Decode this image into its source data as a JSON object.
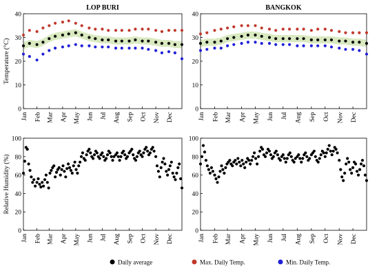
{
  "chart_data": [
    {
      "type": "scatter",
      "title": "LOP BURI",
      "ylabel": "Temperature (°C)",
      "xlabel": "",
      "ylim": [
        0,
        40
      ],
      "yticks": [
        "0",
        "10",
        "20",
        "30",
        "40"
      ],
      "xticks": [
        "Jan",
        "Feb",
        "Mar",
        "Apr",
        "May",
        "Jun",
        "Jul",
        "Aug",
        "Sep",
        "Oct",
        "Nov",
        "Dec"
      ],
      "grid": false,
      "series": [
        {
          "name": "Daily average",
          "color": "#000000",
          "x": [
            1,
            15,
            32,
            46,
            60,
            74,
            91,
            105,
            121,
            135,
            152,
            166,
            182,
            196,
            213,
            227,
            244,
            258,
            274,
            288,
            305,
            319,
            335,
            349,
            365
          ],
          "y": [
            26.5,
            27.5,
            27,
            28,
            29.5,
            30.5,
            31,
            31.5,
            32,
            31,
            30,
            29.5,
            29,
            29,
            28.5,
            28.5,
            28.5,
            29,
            28.5,
            28.5,
            28,
            27.5,
            27.5,
            27,
            27
          ]
        },
        {
          "name": "Max. Daily Temp.",
          "color": "#c0392b",
          "x": [
            1,
            15,
            32,
            46,
            60,
            74,
            91,
            105,
            121,
            135,
            152,
            166,
            182,
            196,
            213,
            227,
            244,
            258,
            274,
            288,
            305,
            319,
            335,
            349,
            365
          ],
          "y": [
            31,
            33,
            32.5,
            34,
            35,
            36,
            36.5,
            37,
            36,
            35,
            34,
            33.5,
            33.5,
            33,
            33,
            33,
            33,
            33.5,
            33.5,
            33.5,
            33,
            32.5,
            33,
            33,
            33
          ]
        },
        {
          "name": "Min. Daily Temp.",
          "color": "#1f1fd6",
          "x": [
            1,
            15,
            32,
            46,
            60,
            74,
            91,
            105,
            121,
            135,
            152,
            166,
            182,
            196,
            213,
            227,
            244,
            258,
            274,
            288,
            305,
            319,
            335,
            349,
            365
          ],
          "y": [
            23,
            22,
            20.5,
            23,
            24.5,
            25.5,
            26,
            26.5,
            27,
            26.5,
            26.5,
            26,
            26,
            26,
            25.5,
            25.5,
            25.5,
            25.5,
            25.5,
            25,
            24.5,
            23.5,
            24,
            23.5,
            21
          ]
        }
      ]
    },
    {
      "type": "scatter",
      "title": "BANGKOK",
      "ylabel": "",
      "xlabel": "",
      "ylim": [
        0,
        40
      ],
      "yticks": [
        "0",
        "10",
        "20",
        "30",
        "40"
      ],
      "xticks": [
        "Jan",
        "Feb",
        "Mar",
        "Apr",
        "May",
        "Jun",
        "Jul",
        "Aug",
        "Sep",
        "Oct",
        "Nov",
        "Dec"
      ],
      "grid": false,
      "series": [
        {
          "name": "Daily average",
          "color": "#000000",
          "x": [
            1,
            15,
            32,
            46,
            60,
            74,
            91,
            105,
            121,
            135,
            152,
            166,
            182,
            196,
            213,
            227,
            244,
            258,
            274,
            288,
            305,
            319,
            335,
            349,
            365
          ],
          "y": [
            27.5,
            28,
            28,
            28.5,
            29.5,
            30,
            30.5,
            31,
            31,
            30.5,
            30,
            29.5,
            29.5,
            29.5,
            29.5,
            29.5,
            29,
            29,
            29,
            29,
            28.5,
            28.5,
            28,
            28,
            27.5
          ]
        },
        {
          "name": "Max. Daily Temp.",
          "color": "#c0392b",
          "x": [
            1,
            15,
            32,
            46,
            60,
            74,
            91,
            105,
            121,
            135,
            152,
            166,
            182,
            196,
            213,
            227,
            244,
            258,
            274,
            288,
            305,
            319,
            335,
            349,
            365
          ],
          "y": [
            31.5,
            32,
            33,
            33.5,
            34,
            34.5,
            35,
            35,
            35,
            34,
            33.5,
            33,
            33.5,
            33.5,
            33.5,
            33.5,
            33,
            33.5,
            33.5,
            33,
            32.5,
            32,
            32,
            32,
            32
          ]
        },
        {
          "name": "Min. Daily Temp.",
          "color": "#1f1fd6",
          "x": [
            1,
            15,
            32,
            46,
            60,
            74,
            91,
            105,
            121,
            135,
            152,
            166,
            182,
            196,
            213,
            227,
            244,
            258,
            274,
            288,
            305,
            319,
            335,
            349,
            365
          ],
          "y": [
            24.5,
            25,
            25.5,
            25.5,
            26.5,
            27,
            27.5,
            28,
            28,
            27.5,
            27.5,
            27,
            27,
            27,
            26.5,
            26.5,
            26.5,
            26.5,
            26.5,
            26,
            25.5,
            25,
            25,
            24.5,
            23
          ]
        }
      ]
    },
    {
      "type": "scatter",
      "title": "",
      "ylabel": "Relative Humidity (%)",
      "xlabel": "",
      "ylim": [
        0,
        100
      ],
      "yticks": [
        "0",
        "20",
        "40",
        "60",
        "80",
        "100"
      ],
      "xticks": [
        "Jan",
        "Feb",
        "Mar",
        "Apr",
        "May",
        "Jun",
        "Jul",
        "Aug",
        "Sep",
        "Oct",
        "Nov",
        "Dec"
      ],
      "grid": false,
      "series": [
        {
          "name": "Daily average",
          "color": "#000000",
          "x": [
            1,
            4,
            7,
            10,
            13,
            16,
            19,
            22,
            25,
            28,
            32,
            35,
            38,
            41,
            44,
            47,
            50,
            53,
            56,
            59,
            62,
            65,
            68,
            71,
            74,
            77,
            80,
            83,
            86,
            89,
            92,
            95,
            98,
            101,
            104,
            107,
            110,
            113,
            116,
            119,
            122,
            125,
            128,
            131,
            134,
            137,
            140,
            143,
            146,
            149,
            152,
            155,
            158,
            161,
            164,
            167,
            170,
            173,
            176,
            179,
            182,
            185,
            188,
            191,
            194,
            197,
            200,
            203,
            206,
            209,
            213,
            216,
            219,
            222,
            225,
            228,
            231,
            234,
            237,
            240,
            244,
            247,
            250,
            253,
            256,
            259,
            262,
            265,
            268,
            271,
            274,
            277,
            280,
            283,
            286,
            289,
            292,
            295,
            298,
            301,
            305,
            308,
            311,
            314,
            317,
            320,
            323,
            326,
            329,
            332,
            335,
            338,
            341,
            344,
            347,
            350,
            353,
            356,
            359,
            362,
            365
          ],
          "y": [
            62,
            75,
            90,
            88,
            72,
            65,
            58,
            52,
            55,
            48,
            52,
            56,
            50,
            47,
            52,
            48,
            55,
            60,
            52,
            46,
            62,
            65,
            68,
            70,
            58,
            63,
            66,
            68,
            60,
            66,
            70,
            64,
            58,
            67,
            72,
            68,
            65,
            62,
            70,
            74,
            66,
            62,
            70,
            74,
            80,
            84,
            78,
            76,
            82,
            86,
            88,
            84,
            80,
            78,
            82,
            86,
            84,
            80,
            78,
            82,
            84,
            80,
            76,
            78,
            82,
            86,
            84,
            80,
            76,
            80,
            82,
            84,
            80,
            76,
            80,
            84,
            86,
            82,
            78,
            80,
            84,
            86,
            88,
            82,
            78,
            76,
            80,
            84,
            86,
            82,
            80,
            84,
            88,
            90,
            86,
            82,
            84,
            88,
            90,
            86,
            80,
            70,
            64,
            58,
            68,
            74,
            78,
            72,
            64,
            60,
            66,
            70,
            74,
            62,
            58,
            55,
            62,
            68,
            72,
            56,
            46
          ]
        }
      ]
    },
    {
      "type": "scatter",
      "title": "",
      "ylabel": "",
      "xlabel": "",
      "ylim": [
        0,
        100
      ],
      "yticks": [
        "0",
        "20",
        "40",
        "60",
        "80",
        "100"
      ],
      "xticks": [
        "Jan",
        "Feb",
        "Mar",
        "Apr",
        "May",
        "Jun",
        "Jul",
        "Aug",
        "Sep",
        "Oct",
        "Nov",
        "Dec"
      ],
      "grid": false,
      "series": [
        {
          "name": "Daily average",
          "color": "#000000",
          "x": [
            1,
            4,
            7,
            10,
            13,
            16,
            19,
            22,
            25,
            28,
            32,
            35,
            38,
            41,
            44,
            47,
            50,
            53,
            56,
            59,
            62,
            65,
            68,
            71,
            74,
            77,
            80,
            83,
            86,
            89,
            92,
            95,
            98,
            101,
            104,
            107,
            110,
            113,
            116,
            119,
            122,
            125,
            128,
            131,
            134,
            137,
            140,
            143,
            146,
            149,
            152,
            155,
            158,
            161,
            164,
            167,
            170,
            173,
            176,
            179,
            182,
            185,
            188,
            191,
            194,
            197,
            200,
            203,
            206,
            209,
            213,
            216,
            219,
            222,
            225,
            228,
            231,
            234,
            237,
            240,
            244,
            247,
            250,
            253,
            256,
            259,
            262,
            265,
            268,
            271,
            274,
            277,
            280,
            283,
            286,
            289,
            292,
            295,
            298,
            301,
            305,
            308,
            311,
            314,
            317,
            320,
            323,
            326,
            329,
            332,
            335,
            338,
            341,
            344,
            347,
            350,
            353,
            356,
            359,
            362,
            365
          ],
          "y": [
            72,
            80,
            92,
            85,
            76,
            70,
            66,
            62,
            68,
            64,
            60,
            56,
            52,
            58,
            64,
            70,
            66,
            62,
            68,
            72,
            74,
            76,
            72,
            70,
            74,
            76,
            72,
            78,
            74,
            70,
            76,
            72,
            68,
            74,
            78,
            76,
            72,
            76,
            80,
            84,
            78,
            72,
            80,
            86,
            90,
            88,
            82,
            80,
            84,
            88,
            86,
            82,
            78,
            80,
            84,
            86,
            82,
            78,
            76,
            80,
            82,
            78,
            74,
            78,
            82,
            84,
            80,
            76,
            74,
            78,
            80,
            82,
            78,
            74,
            78,
            82,
            84,
            80,
            76,
            78,
            82,
            84,
            86,
            80,
            76,
            74,
            78,
            82,
            86,
            84,
            80,
            84,
            88,
            92,
            86,
            82,
            86,
            90,
            88,
            84,
            76,
            66,
            58,
            54,
            62,
            72,
            78,
            74,
            66,
            62,
            68,
            74,
            72,
            64,
            60,
            66,
            72,
            76,
            70,
            60,
            54
          ]
        }
      ]
    }
  ],
  "legend": {
    "placement": "bottom",
    "items": [
      {
        "label": "Daily average",
        "color": "#000000"
      },
      {
        "label": "Max. Daily Temp.",
        "color": "#c0392b"
      },
      {
        "label": "Min. Daily Temp.",
        "color": "#1f1fd6"
      }
    ]
  }
}
